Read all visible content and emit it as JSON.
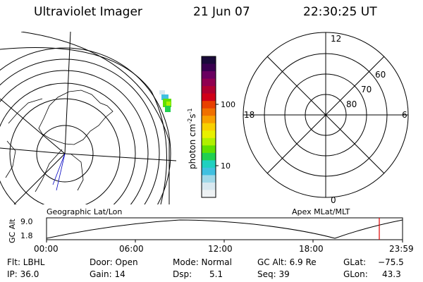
{
  "header": {
    "title": "Ultraviolet Imager",
    "date": "21 Jun 07",
    "time": "22:30:25 UT"
  },
  "colorbar": {
    "label": "photon cm",
    "label_exp1": "-2",
    "label_s": "s",
    "label_exp2": "-1",
    "ticks": [
      "100",
      "10"
    ],
    "colors": [
      "#1a0a3a",
      "#3a0050",
      "#6a0060",
      "#900050",
      "#b00030",
      "#d00018",
      "#e84000",
      "#f07000",
      "#f8a000",
      "#f8d000",
      "#e8f000",
      "#b0f000",
      "#60e000",
      "#20d050",
      "#20d0c0",
      "#40c0e0",
      "#a0d8e8",
      "#d8e8f0",
      "#eef2f4"
    ]
  },
  "left_map": {
    "caption": "Geographic Lat/Lon"
  },
  "right_map": {
    "caption": "Apex MLat/MLT",
    "mlt_labels": {
      "top": "12",
      "left": "18",
      "right": "6",
      "bottom": "0"
    },
    "lat_labels": [
      "60",
      "70",
      "80"
    ]
  },
  "timeline": {
    "y_label": "GC Alt",
    "y_top": "9.0",
    "y_bottom": "1.8",
    "x_ticks": [
      "00:00",
      "06:00",
      "12:00",
      "18:00",
      "23:59"
    ],
    "marker_color": "#e00000"
  },
  "info": {
    "flt": "Flt: LBHL",
    "ip": "IP: 36.0",
    "door": "Door: Open",
    "gain": "Gain: 14",
    "mode": "Mode: Normal",
    "dsp_label": "Dsp:",
    "dsp_value": "5.1",
    "gcalt": "GC Alt: 6.9 Re",
    "seq": "Seq: 39",
    "glat_label": "GLat:",
    "glat_value": "−75.5",
    "glon_label": "GLon:",
    "glon_value": "43.3"
  }
}
